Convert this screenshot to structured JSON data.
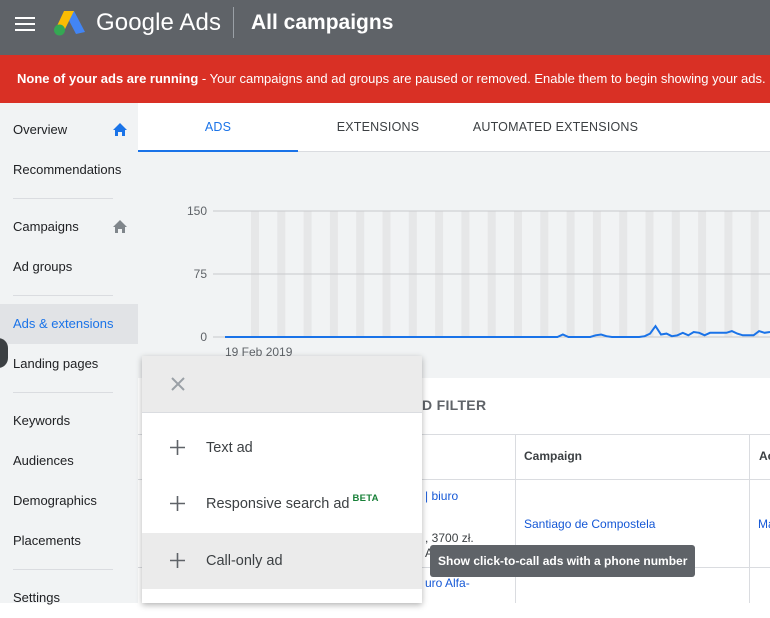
{
  "header": {
    "brand": "Google Ads",
    "title": "All campaigns"
  },
  "banner": {
    "bold": "None of your ads are running",
    "text": " - Your campaigns and ad groups are paused or removed. Enable them to begin showing your ads."
  },
  "sidebar": {
    "items": [
      {
        "label": "Overview"
      },
      {
        "label": "Recommendations"
      },
      {
        "label": "Campaigns"
      },
      {
        "label": "Ad groups"
      },
      {
        "label": "Ads & extensions"
      },
      {
        "label": "Landing pages"
      },
      {
        "label": "Keywords"
      },
      {
        "label": "Audiences"
      },
      {
        "label": "Demographics"
      },
      {
        "label": "Placements"
      },
      {
        "label": "Settings"
      }
    ]
  },
  "tabs": [
    {
      "label": "ADS"
    },
    {
      "label": "EXTENSIONS"
    },
    {
      "label": "AUTOMATED EXTENSIONS"
    }
  ],
  "chart_data": {
    "type": "line",
    "x_start_label": "19 Feb 2019",
    "yticks": [
      0,
      75,
      150
    ],
    "ylim": [
      0,
      150
    ],
    "values": [
      0,
      0,
      0,
      0,
      0,
      0,
      0,
      0,
      0,
      0,
      0,
      0,
      0,
      0,
      0,
      0,
      0,
      0,
      0,
      0,
      0,
      0,
      0,
      0,
      0,
      0,
      0,
      0,
      0,
      0,
      0,
      0,
      0,
      0,
      0,
      0,
      0,
      0,
      0,
      0,
      0,
      0,
      0,
      0,
      0,
      0,
      0,
      0,
      0,
      0,
      0,
      0,
      0,
      0,
      0,
      0,
      0,
      0,
      0,
      0,
      0,
      0,
      3,
      0,
      0,
      0,
      0,
      0,
      2,
      3,
      1,
      0,
      0,
      0,
      0,
      0,
      0,
      1,
      4,
      13,
      3,
      4,
      1,
      2,
      5,
      2,
      6,
      5,
      2,
      5,
      5,
      5,
      5,
      7,
      4,
      2,
      2,
      2,
      7,
      5,
      6
    ],
    "color": "#1a73e8"
  },
  "table": {
    "filter_label": "D FILTER",
    "headers": {
      "campaign": "Campaign",
      "next": "Ac"
    },
    "rows": [
      {
        "frag1": "| biuro",
        "frag2": ", 3700 zł.",
        "frag3": "A",
        "campaign": "Santiago de Compostela",
        "next": "Ma"
      },
      {
        "frag1": "uro Alfa-"
      }
    ]
  },
  "popup": {
    "items": [
      {
        "label": "Text ad"
      },
      {
        "label": "Responsive search ad",
        "badge": "BETA"
      },
      {
        "label": "Call-only ad"
      }
    ]
  },
  "tooltip": "Show click-to-call ads with a phone number",
  "colors": {
    "topbar": "#5f6368",
    "banner": "#d93025",
    "accent": "#1a73e8"
  }
}
